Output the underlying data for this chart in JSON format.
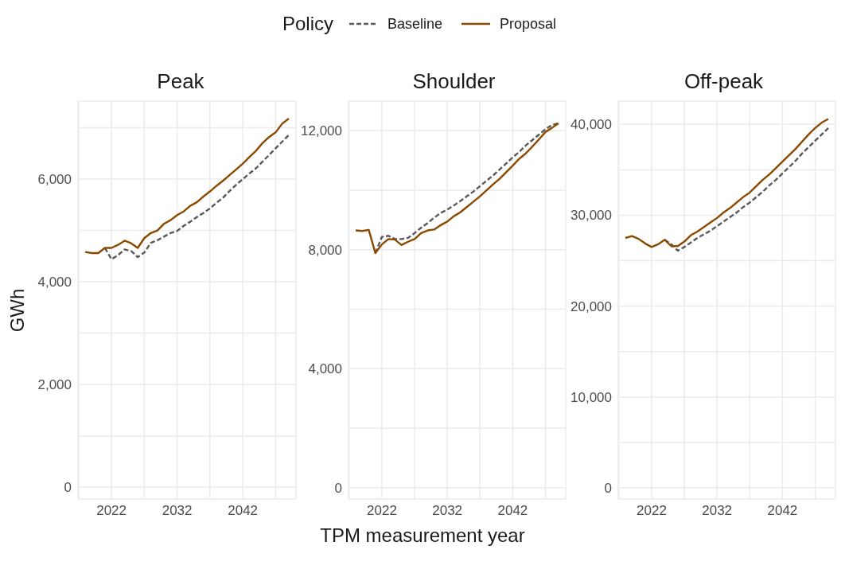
{
  "chart_data": [
    {
      "type": "line",
      "title": "Peak",
      "ylabel": "GWh",
      "legend_title": "Policy",
      "legend": "top",
      "grid": true,
      "x": [
        2018,
        2019,
        2020,
        2021,
        2022,
        2023,
        2024,
        2025,
        2026,
        2027,
        2028,
        2029,
        2030,
        2031,
        2032,
        2033,
        2034,
        2035,
        2036,
        2037,
        2038,
        2039,
        2040,
        2041,
        2042,
        2043,
        2044,
        2045,
        2046,
        2047,
        2048,
        2049
      ],
      "xlim": [
        2016.9,
        2050.1
      ],
      "xticks": [
        {
          "value": 2017,
          "label": null
        },
        2022,
        {
          "value": 2027,
          "label": null
        },
        2032,
        {
          "value": 2037,
          "label": null
        },
        2042,
        {
          "value": 2047,
          "label": null
        }
      ],
      "ylim": [
        -230,
        7520
      ],
      "yticks": [
        {
          "value": 0,
          "label": "0"
        },
        {
          "value": 1000,
          "label": null
        },
        {
          "value": 2000,
          "label": "2,000"
        },
        {
          "value": 3000,
          "label": null
        },
        {
          "value": 4000,
          "label": "4,000"
        },
        {
          "value": 5000,
          "label": null
        },
        {
          "value": 6000,
          "label": "6,000"
        },
        {
          "value": 7000,
          "label": null
        }
      ],
      "series": [
        {
          "name": "Baseline",
          "color": "#595959",
          "line_style": "dashed",
          "values": [
            null,
            null,
            null,
            4660,
            4440,
            4520,
            4630,
            4600,
            4480,
            4570,
            4760,
            4810,
            4880,
            4950,
            4990,
            5090,
            5170,
            5260,
            5340,
            5430,
            5540,
            5640,
            5770,
            5890,
            6000,
            6110,
            6210,
            6340,
            6470,
            6600,
            6730,
            6860
          ]
        },
        {
          "name": "Proposal",
          "color": "#8b4a00",
          "line_style": "solid",
          "values": [
            4580,
            4560,
            4560,
            4660,
            4660,
            4720,
            4800,
            4750,
            4660,
            4850,
            4950,
            5000,
            5130,
            5200,
            5300,
            5370,
            5480,
            5550,
            5660,
            5760,
            5870,
            5970,
            6080,
            6190,
            6300,
            6430,
            6550,
            6700,
            6820,
            6910,
            7080,
            7180
          ]
        }
      ]
    },
    {
      "type": "line",
      "title": "Shoulder",
      "xlabel": "TPM measurement year",
      "grid": true,
      "x": [
        2018,
        2019,
        2020,
        2021,
        2022,
        2023,
        2024,
        2025,
        2026,
        2027,
        2028,
        2029,
        2030,
        2031,
        2032,
        2033,
        2034,
        2035,
        2036,
        2037,
        2038,
        2039,
        2040,
        2041,
        2042,
        2043,
        2044,
        2045,
        2046,
        2047,
        2048,
        2049
      ],
      "xlim": [
        2016.9,
        2050.1
      ],
      "xticks": [
        {
          "value": 2017,
          "label": null
        },
        2022,
        {
          "value": 2027,
          "label": null
        },
        2032,
        {
          "value": 2037,
          "label": null
        },
        2042,
        {
          "value": 2047,
          "label": null
        }
      ],
      "ylim": [
        -380,
        13000
      ],
      "yticks": [
        {
          "value": 0,
          "label": "0"
        },
        {
          "value": 2000,
          "label": null
        },
        {
          "value": 4000,
          "label": "4,000"
        },
        {
          "value": 6000,
          "label": null
        },
        {
          "value": 8000,
          "label": "8,000"
        },
        {
          "value": 10000,
          "label": null
        },
        {
          "value": 12000,
          "label": "12,000"
        }
      ],
      "series": [
        {
          "color": "#595959",
          "line_style": "dashed",
          "values": [
            null,
            null,
            null,
            7890,
            8430,
            8470,
            8360,
            8360,
            8400,
            8560,
            8740,
            8900,
            9080,
            9240,
            9350,
            9490,
            9640,
            9800,
            9960,
            10140,
            10320,
            10500,
            10700,
            10900,
            11110,
            11290,
            11510,
            11690,
            11870,
            12050,
            12200,
            12250
          ]
        },
        {
          "color": "#8b4a00",
          "line_style": "solid",
          "values": [
            8650,
            8630,
            8670,
            7890,
            8180,
            8360,
            8340,
            8160,
            8270,
            8360,
            8560,
            8650,
            8680,
            8830,
            8950,
            9130,
            9260,
            9440,
            9620,
            9800,
            10000,
            10200,
            10390,
            10610,
            10830,
            11060,
            11240,
            11470,
            11710,
            11960,
            12100,
            12250
          ]
        }
      ]
    },
    {
      "type": "line",
      "title": "Off-peak",
      "grid": true,
      "x": [
        2018,
        2019,
        2020,
        2021,
        2022,
        2023,
        2024,
        2025,
        2026,
        2027,
        2028,
        2029,
        2030,
        2031,
        2032,
        2033,
        2034,
        2035,
        2036,
        2037,
        2038,
        2039,
        2040,
        2041,
        2042,
        2043,
        2044,
        2045,
        2046,
        2047,
        2048,
        2049
      ],
      "xlim": [
        2016.9,
        2050.1
      ],
      "xticks": [
        {
          "value": 2017,
          "label": null
        },
        2022,
        {
          "value": 2027,
          "label": null
        },
        2032,
        {
          "value": 2037,
          "label": null
        },
        2042,
        {
          "value": 2047,
          "label": null
        }
      ],
      "ylim": [
        -1240,
        42570
      ],
      "yticks": [
        {
          "value": 0,
          "label": "0"
        },
        {
          "value": 5000,
          "label": null
        },
        {
          "value": 10000,
          "label": "10,000"
        },
        {
          "value": 15000,
          "label": null
        },
        {
          "value": 20000,
          "label": "20,000"
        },
        {
          "value": 25000,
          "label": null
        },
        {
          "value": 30000,
          "label": "30,000"
        },
        {
          "value": 35000,
          "label": null
        },
        {
          "value": 40000,
          "label": "40,000"
        }
      ],
      "series": [
        {
          "color": "#595959",
          "line_style": "dashed",
          "values": [
            null,
            null,
            null,
            null,
            null,
            null,
            27300,
            26800,
            26100,
            26500,
            27000,
            27500,
            27900,
            28300,
            28800,
            29300,
            29800,
            30300,
            30900,
            31400,
            32000,
            32600,
            33300,
            33900,
            34600,
            35300,
            36000,
            36800,
            37500,
            38200,
            38900,
            39600
          ]
        },
        {
          "color": "#8b4a00",
          "line_style": "solid",
          "values": [
            27500,
            27700,
            27400,
            26900,
            26500,
            26800,
            27300,
            26600,
            26600,
            27100,
            27800,
            28200,
            28700,
            29200,
            29700,
            30300,
            30800,
            31400,
            32000,
            32500,
            33200,
            33900,
            34500,
            35200,
            35900,
            36600,
            37300,
            38100,
            38900,
            39600,
            40200,
            40600
          ]
        }
      ]
    }
  ]
}
